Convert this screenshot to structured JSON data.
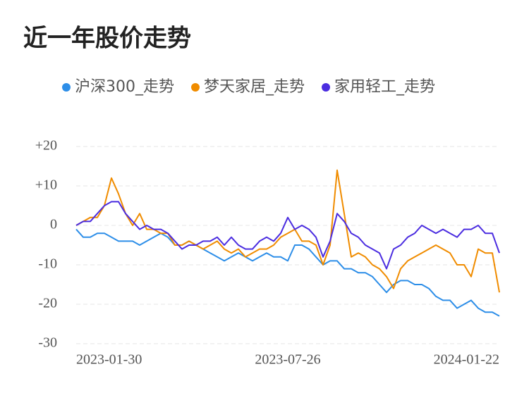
{
  "chart_data": {
    "type": "line",
    "title": "近一年股价走势",
    "categories": [
      "2023-01-30",
      null,
      null,
      null,
      null,
      null,
      null,
      null,
      null,
      null,
      null,
      null,
      null,
      null,
      null,
      null,
      null,
      null,
      null,
      null,
      null,
      null,
      null,
      null,
      null,
      null,
      null,
      null,
      null,
      null,
      "2023-07-26",
      null,
      null,
      null,
      null,
      null,
      null,
      null,
      null,
      null,
      null,
      null,
      null,
      null,
      null,
      null,
      null,
      null,
      null,
      null,
      null,
      null,
      null,
      null,
      null,
      null,
      null,
      null,
      null,
      null,
      "2024-01-22"
    ],
    "series": [
      {
        "name": "沪深300_走势",
        "color": "#2d8ee8",
        "values": [
          -1,
          -3,
          -3,
          -2,
          -2,
          -3,
          -4,
          -4,
          -4,
          -5,
          -4,
          -3,
          -2,
          -3,
          -5,
          -5,
          -4,
          -5,
          -6,
          -7,
          -8,
          -9,
          -8,
          -7,
          -8,
          -9,
          -8,
          -7,
          -8,
          -8,
          -9,
          -5,
          -5,
          -6,
          -8,
          -10,
          -9,
          -9,
          -11,
          -11,
          -12,
          -12,
          -13,
          -15,
          -17,
          -15,
          -14,
          -14,
          -15,
          -15,
          -16,
          -18,
          -19,
          -19,
          -21,
          -20,
          -19,
          -21,
          -22,
          -22,
          -23
        ]
      },
      {
        "name": "梦天家居_走势",
        "color": "#f08c00",
        "values": [
          0,
          1,
          2,
          2,
          5,
          12,
          8,
          3,
          0,
          3,
          -1,
          -1,
          -2,
          -2,
          -5,
          -5,
          -4,
          -5,
          -6,
          -5,
          -4,
          -6,
          -7,
          -6,
          -8,
          -7,
          -6,
          -6,
          -5,
          -3,
          -2,
          -1,
          -4,
          -4,
          -5,
          -10,
          -5,
          14,
          3,
          -8,
          -7,
          -8,
          -10,
          -11,
          -13,
          -16,
          -11,
          -9,
          -8,
          -7,
          -6,
          -5,
          -6,
          -7,
          -10,
          -10,
          -13,
          -6,
          -7,
          -7,
          -17
        ]
      },
      {
        "name": "家用轻工_走势",
        "color": "#4b2de0",
        "values": [
          0,
          1,
          1,
          3,
          5,
          6,
          6,
          3,
          1,
          -1,
          0,
          -1,
          -1,
          -2,
          -4,
          -6,
          -5,
          -5,
          -4,
          -4,
          -3,
          -5,
          -3,
          -5,
          -6,
          -6,
          -4,
          -3,
          -4,
          -2,
          2,
          -1,
          0,
          -1,
          -3,
          -8,
          -4,
          3,
          1,
          -2,
          -3,
          -5,
          -6,
          -7,
          -11,
          -6,
          -5,
          -3,
          -2,
          0,
          -1,
          -2,
          -1,
          -2,
          -3,
          -1,
          -1,
          0,
          -2,
          -2,
          -7
        ]
      }
    ],
    "ylim": [
      -30,
      20
    ],
    "yticks": [
      {
        "value": 20,
        "label": "+20"
      },
      {
        "value": 10,
        "label": "+10"
      },
      0,
      -10,
      -20,
      -30
    ],
    "grid": true
  }
}
